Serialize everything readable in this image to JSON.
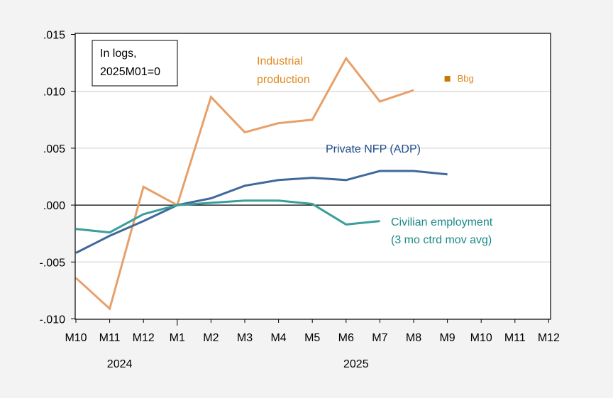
{
  "chart_data": {
    "type": "line",
    "title": "",
    "xlabel": "",
    "ylabel": "",
    "annotation": [
      "In logs,",
      "2025M01=0"
    ],
    "x": [
      "2024M10",
      "2024M11",
      "2024M12",
      "2025M01",
      "2025M02",
      "2025M03",
      "2025M04",
      "2025M05",
      "2025M06",
      "2025M07",
      "2025M08",
      "2025M09",
      "2025M10",
      "2025M11",
      "2025M12"
    ],
    "x_tick_labels": [
      "M10",
      "M11",
      "M12",
      "M1",
      "M2",
      "M3",
      "M4",
      "M5",
      "M6",
      "M7",
      "M8",
      "M9",
      "M10",
      "M11",
      "M12"
    ],
    "year_labels": [
      {
        "label": "2024",
        "at": "2024M11"
      },
      {
        "label": "2025",
        "at": "2025M06"
      }
    ],
    "ylim": [
      -0.01,
      0.015
    ],
    "y_ticks": [
      -0.01,
      -0.005,
      0.0,
      0.005,
      0.01,
      0.015
    ],
    "y_tick_labels": [
      "-.010",
      "-.005",
      ".000",
      ".005",
      ".010",
      ".015"
    ],
    "grid": "horizontal",
    "series": [
      {
        "name": "Industrial production",
        "label_lines": [
          "Industrial",
          "production"
        ],
        "color": "#e8a06a",
        "label_color": "#e08a1e",
        "values": [
          -0.0064,
          -0.0091,
          0.0016,
          0.0,
          0.0095,
          0.0064,
          0.0072,
          0.0075,
          0.0129,
          0.0091,
          0.0101,
          null,
          null,
          null,
          null
        ]
      },
      {
        "name": "Private NFP (ADP)",
        "label_lines": [
          "Private NFP (ADP)"
        ],
        "color": "#41689a",
        "label_color": "#1f4e8c",
        "values": [
          -0.0042,
          -0.0027,
          -0.0014,
          0.0,
          0.0006,
          0.0017,
          0.0022,
          0.0024,
          0.0022,
          0.003,
          0.003,
          0.0027,
          null,
          null,
          null
        ]
      },
      {
        "name": "Civilian employment (3 mo ctrd mov avg)",
        "label_lines": [
          "Civilian employment",
          "(3 mo ctrd mov avg)"
        ],
        "color": "#3a9e9a",
        "label_color": "#1a8a86",
        "values": [
          -0.0021,
          -0.0024,
          -0.0008,
          0.0,
          0.0002,
          0.0004,
          0.0004,
          0.0001,
          -0.0017,
          -0.0014,
          null,
          null,
          null,
          null,
          null
        ]
      }
    ],
    "points": [
      {
        "name": "Bbg",
        "x": "2025M09",
        "y": 0.0111,
        "color": "#c87800"
      }
    ]
  }
}
